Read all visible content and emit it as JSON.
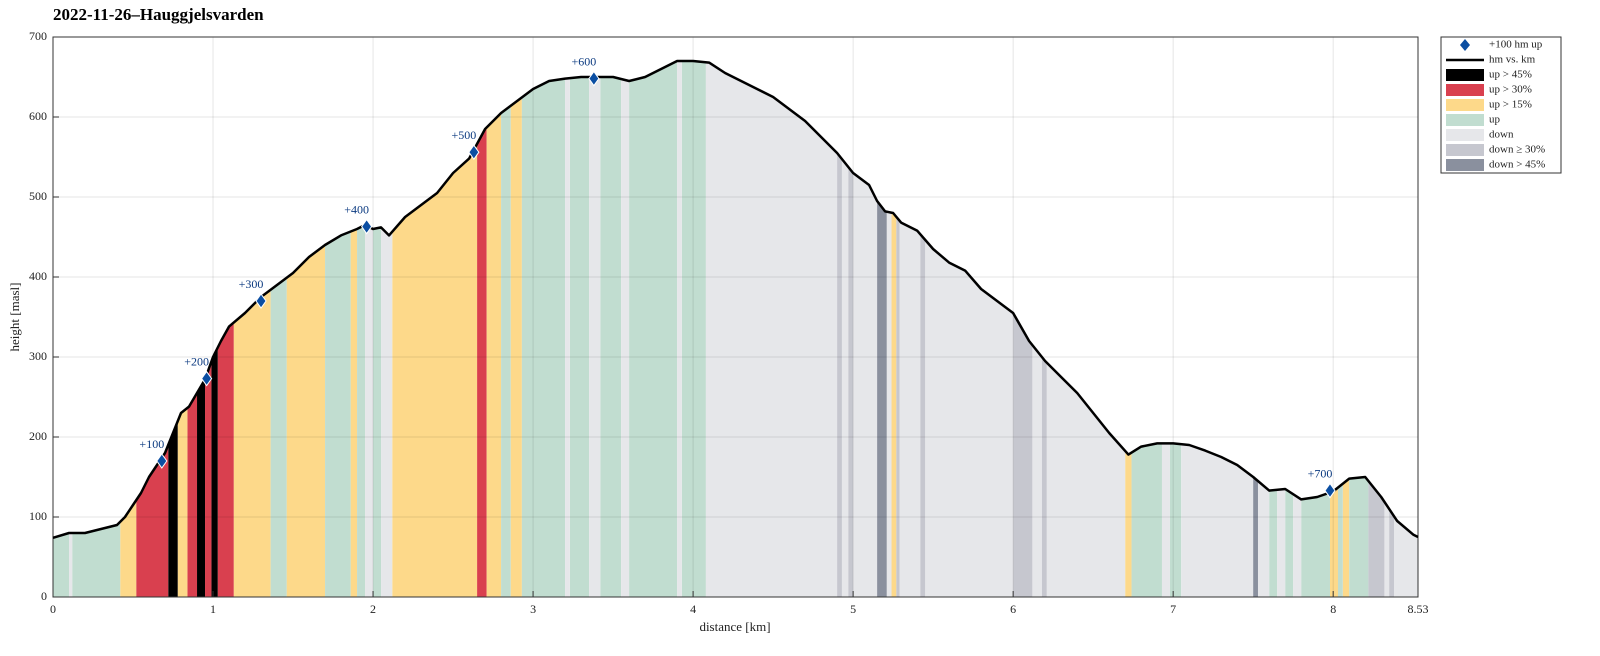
{
  "chart_data": {
    "type": "profile",
    "title": "2022-11-26–Hauggjelsvarden",
    "x_label": "distance [km]",
    "y_label": "height [masl]",
    "xlim": [
      0,
      8.53
    ],
    "ylim": [
      0,
      700
    ],
    "xticks": [
      0,
      1,
      2,
      3,
      4,
      5,
      6,
      7,
      8,
      8.53
    ],
    "yticks": [
      0,
      100,
      200,
      300,
      400,
      500,
      600,
      700
    ],
    "grid": true,
    "legend": "outside-right",
    "markers": {
      "name": "+100 hm up",
      "color": "#0b4ea2",
      "x": [
        0.68,
        0.96,
        1.3,
        1.96,
        2.63,
        3.38,
        7.98
      ],
      "y": [
        170,
        273,
        370,
        463,
        556,
        648,
        133
      ],
      "labels": [
        "+100",
        "+200",
        "+300",
        "+400",
        "+500",
        "+600",
        "+700"
      ]
    },
    "profile": {
      "name": "hm vs. km",
      "color": "#000000",
      "x": [
        0,
        0.1,
        0.2,
        0.3,
        0.4,
        0.45,
        0.5,
        0.55,
        0.6,
        0.65,
        0.7,
        0.75,
        0.8,
        0.85,
        0.9,
        0.95,
        1.0,
        1.05,
        1.1,
        1.2,
        1.3,
        1.4,
        1.5,
        1.6,
        1.7,
        1.8,
        1.9,
        1.95,
        2.0,
        2.05,
        2.1,
        2.2,
        2.3,
        2.4,
        2.5,
        2.6,
        2.7,
        2.8,
        2.9,
        3.0,
        3.1,
        3.2,
        3.3,
        3.4,
        3.5,
        3.6,
        3.7,
        3.8,
        3.9,
        4.0,
        4.1,
        4.2,
        4.3,
        4.4,
        4.5,
        4.6,
        4.7,
        4.8,
        4.9,
        5.0,
        5.1,
        5.15,
        5.2,
        5.25,
        5.3,
        5.4,
        5.5,
        5.6,
        5.7,
        5.8,
        5.9,
        6.0,
        6.1,
        6.2,
        6.3,
        6.4,
        6.5,
        6.6,
        6.72,
        6.8,
        6.9,
        7.0,
        7.1,
        7.2,
        7.3,
        7.4,
        7.5,
        7.6,
        7.7,
        7.8,
        7.9,
        8.0,
        8.1,
        8.2,
        8.3,
        8.4,
        8.5,
        8.53
      ],
      "y": [
        74,
        80,
        80,
        85,
        90,
        100,
        115,
        130,
        150,
        165,
        180,
        205,
        230,
        238,
        255,
        272,
        300,
        320,
        338,
        355,
        375,
        390,
        405,
        425,
        440,
        452,
        460,
        465,
        460,
        462,
        452,
        475,
        490,
        505,
        530,
        548,
        585,
        605,
        620,
        635,
        645,
        648,
        650,
        650,
        650,
        645,
        650,
        660,
        670,
        670,
        668,
        655,
        645,
        635,
        625,
        610,
        595,
        575,
        555,
        530,
        515,
        495,
        482,
        480,
        468,
        458,
        435,
        418,
        408,
        385,
        370,
        355,
        320,
        295,
        275,
        255,
        230,
        205,
        178,
        188,
        192,
        192,
        190,
        183,
        175,
        165,
        150,
        133,
        135,
        122,
        125,
        132,
        148,
        150,
        125,
        95,
        78,
        75
      ]
    },
    "series": [
      {
        "name": "up > 45%",
        "color": "#000000",
        "intervals": [
          [
            0.72,
            0.78
          ],
          [
            0.9,
            0.95
          ],
          [
            0.99,
            1.03
          ]
        ]
      },
      {
        "name": "up > 30%",
        "color": "#d9404f",
        "intervals": [
          [
            0.52,
            0.72
          ],
          [
            0.84,
            0.9
          ],
          [
            0.95,
            0.99
          ],
          [
            1.03,
            1.13
          ],
          [
            2.65,
            2.71
          ]
        ]
      },
      {
        "name": "up > 15%",
        "color": "#fdd98a",
        "intervals": [
          [
            0.42,
            0.52
          ],
          [
            0.78,
            0.84
          ],
          [
            1.13,
            1.36
          ],
          [
            1.46,
            1.7
          ],
          [
            1.86,
            1.9
          ],
          [
            2.12,
            2.65
          ],
          [
            2.71,
            2.8
          ],
          [
            2.86,
            2.93
          ],
          [
            5.24,
            5.27
          ],
          [
            6.7,
            6.74
          ],
          [
            7.98,
            8.03
          ],
          [
            8.06,
            8.1
          ]
        ]
      },
      {
        "name": "up",
        "color": "#c1ddd0",
        "intervals": [
          [
            0,
            0.1
          ],
          [
            0.12,
            0.42
          ],
          [
            1.36,
            1.46
          ],
          [
            1.7,
            1.86
          ],
          [
            1.9,
            1.95
          ],
          [
            2.0,
            2.05
          ],
          [
            2.8,
            2.86
          ],
          [
            2.93,
            3.2
          ],
          [
            3.23,
            3.35
          ],
          [
            3.42,
            3.55
          ],
          [
            3.6,
            3.9
          ],
          [
            3.93,
            4.08
          ],
          [
            6.74,
            6.93
          ],
          [
            6.98,
            7.05
          ],
          [
            7.6,
            7.65
          ],
          [
            7.7,
            7.75
          ],
          [
            7.8,
            7.98
          ],
          [
            8.03,
            8.06
          ],
          [
            8.1,
            8.22
          ]
        ]
      },
      {
        "name": "down",
        "color": "#e6e7ea",
        "intervals": [
          [
            0.1,
            0.12
          ],
          [
            1.95,
            2.0
          ],
          [
            2.05,
            2.12
          ],
          [
            3.2,
            3.23
          ],
          [
            3.35,
            3.42
          ],
          [
            3.55,
            3.6
          ],
          [
            3.9,
            3.93
          ],
          [
            4.08,
            4.9
          ],
          [
            4.93,
            4.97
          ],
          [
            5.0,
            5.15
          ],
          [
            5.21,
            5.24
          ],
          [
            5.29,
            5.42
          ],
          [
            5.45,
            6.0
          ],
          [
            6.12,
            6.18
          ],
          [
            6.21,
            6.7
          ],
          [
            6.93,
            6.98
          ],
          [
            7.05,
            7.5
          ],
          [
            7.53,
            7.6
          ],
          [
            7.65,
            7.7
          ],
          [
            7.75,
            7.8
          ],
          [
            8.32,
            8.35
          ],
          [
            8.38,
            8.53
          ]
        ]
      },
      {
        "name": "down ≥ 30%",
        "color": "#c6c7cf",
        "intervals": [
          [
            4.9,
            4.93
          ],
          [
            4.97,
            5.0
          ],
          [
            5.27,
            5.29
          ],
          [
            5.42,
            5.45
          ],
          [
            6.0,
            6.12
          ],
          [
            6.18,
            6.21
          ],
          [
            8.22,
            8.32
          ],
          [
            8.35,
            8.38
          ]
        ]
      },
      {
        "name": "down > 45%",
        "color": "#8a909e",
        "intervals": [
          [
            5.15,
            5.21
          ],
          [
            7.5,
            7.53
          ]
        ]
      }
    ]
  }
}
